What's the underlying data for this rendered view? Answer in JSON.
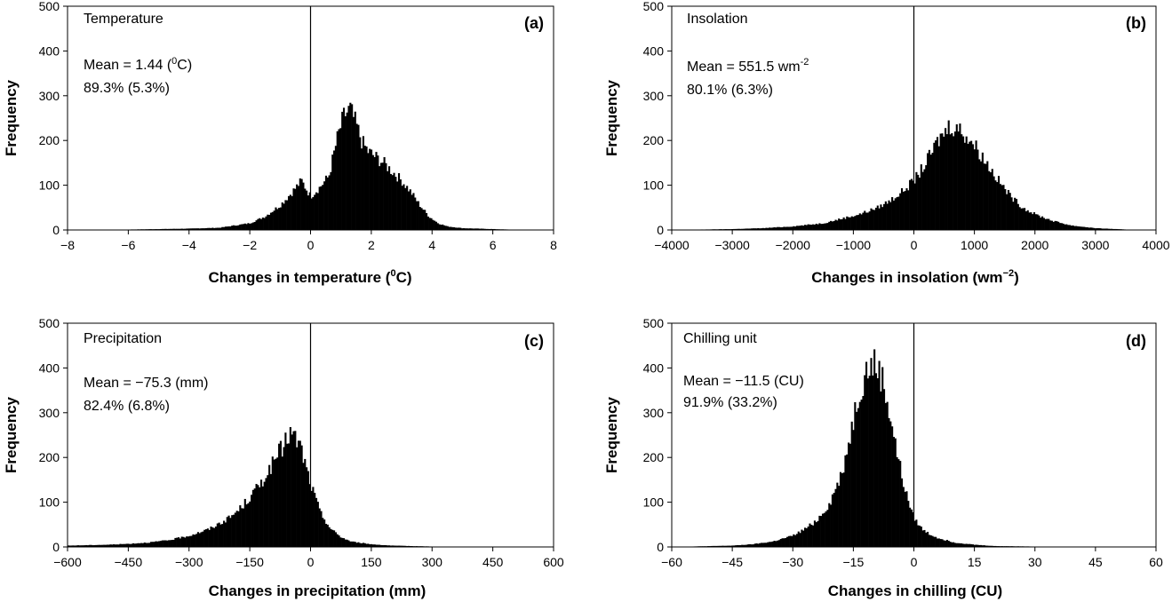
{
  "chart_data": [
    {
      "type": "bar",
      "panel_label": "(a)",
      "name": "Temperature",
      "stats": [
        "Mean = 1.44 (",
        "0",
        "C)",
        "89.3% (5.3%)"
      ],
      "xlabel": [
        "Changes in temperature (",
        "0",
        "C)"
      ],
      "ylabel": "Frequency",
      "xlim": [
        -8,
        8
      ],
      "ylim": [
        0,
        500
      ],
      "xticks": [
        -8,
        -6,
        -4,
        -2,
        0,
        2,
        4,
        6,
        8
      ],
      "xtick_labels": [
        "−8",
        "−6",
        "−4",
        "−2",
        "0",
        "2",
        "4",
        "6",
        "8"
      ],
      "yticks": [
        0,
        100,
        200,
        300,
        400,
        500
      ],
      "zero_line": 0,
      "x": [
        -7.5,
        -6.0,
        -5.0,
        -4.0,
        -3.0,
        -2.0,
        -1.5,
        -1.0,
        -0.6,
        -0.3,
        0.0,
        0.3,
        0.6,
        0.9,
        1.1,
        1.3,
        1.5,
        1.7,
        1.9,
        2.1,
        2.4,
        2.7,
        3.0,
        3.3,
        3.6,
        3.9,
        4.2,
        4.5,
        5.0,
        5.5,
        6.0,
        6.5,
        7.0
      ],
      "values": [
        0,
        1,
        2,
        3,
        5,
        15,
        30,
        55,
        85,
        110,
        75,
        95,
        120,
        210,
        255,
        270,
        235,
        195,
        175,
        165,
        150,
        130,
        110,
        85,
        55,
        30,
        15,
        8,
        4,
        3,
        2,
        1,
        0
      ]
    },
    {
      "type": "bar",
      "panel_label": "(b)",
      "name": "Insolation",
      "stats": [
        "Mean = 551.5 wm",
        "-2",
        "",
        "80.1% (6.3%)"
      ],
      "xlabel": [
        "Changes in insolation (wm",
        "−2",
        ")"
      ],
      "ylabel": "Frequency",
      "xlim": [
        -4000,
        4000
      ],
      "ylim": [
        0,
        500
      ],
      "xticks": [
        -4000,
        -3000,
        -2000,
        -1000,
        0,
        1000,
        2000,
        3000,
        4000
      ],
      "xtick_labels": [
        "−4000",
        "−3000",
        "−2000",
        "−1000",
        "0",
        "1000",
        "2000",
        "3000",
        "4000"
      ],
      "yticks": [
        0,
        100,
        200,
        300,
        400,
        500
      ],
      "zero_line": 0,
      "x": [
        -4000,
        -3500,
        -3000,
        -2500,
        -2000,
        -1500,
        -1200,
        -900,
        -600,
        -400,
        -200,
        0,
        200,
        400,
        600,
        800,
        1000,
        1200,
        1400,
        1600,
        1800,
        2000,
        2300,
        2600,
        3000,
        3500,
        4000
      ],
      "values": [
        0,
        1,
        2,
        4,
        8,
        15,
        25,
        35,
        50,
        65,
        85,
        110,
        150,
        200,
        235,
        220,
        190,
        150,
        110,
        75,
        50,
        35,
        20,
        10,
        4,
        1,
        0
      ]
    },
    {
      "type": "bar",
      "panel_label": "(c)",
      "name": "Precipitation",
      "stats": [
        "Mean = −75.3 (mm)",
        "",
        "",
        "82.4% (6.8%)"
      ],
      "xlabel": [
        "Changes in precipitation  (mm)",
        "",
        ""
      ],
      "ylabel": "Frequency",
      "xlim": [
        -600,
        600
      ],
      "ylim": [
        0,
        500
      ],
      "xticks": [
        -600,
        -450,
        -300,
        -150,
        0,
        150,
        300,
        450,
        600
      ],
      "xtick_labels": [
        "−600",
        "−450",
        "−300",
        "−150",
        "0",
        "150",
        "300",
        "450",
        "600"
      ],
      "yticks": [
        0,
        100,
        200,
        300,
        400,
        500
      ],
      "zero_line": 0,
      "x": [
        -600,
        -550,
        -500,
        -450,
        -400,
        -350,
        -300,
        -250,
        -200,
        -175,
        -150,
        -125,
        -100,
        -75,
        -50,
        -25,
        0,
        25,
        50,
        75,
        100,
        150,
        200,
        250,
        300,
        400,
        500,
        600
      ],
      "values": [
        3,
        4,
        5,
        7,
        10,
        15,
        25,
        40,
        65,
        85,
        110,
        140,
        175,
        215,
        255,
        225,
        140,
        75,
        40,
        22,
        12,
        6,
        3,
        2,
        1,
        0,
        0,
        0
      ]
    },
    {
      "type": "bar",
      "panel_label": "(d)",
      "name": "Chilling unit",
      "stats": [
        "Mean =  −11.5 (CU)",
        "",
        "",
        "91.9% (33.2%)"
      ],
      "xlabel": [
        "Changes in chilling  (CU)",
        "",
        ""
      ],
      "ylabel": "Frequency",
      "xlim": [
        -60,
        60
      ],
      "ylim": [
        0,
        500
      ],
      "xticks": [
        -60,
        -45,
        -30,
        -15,
        0,
        15,
        30,
        45,
        60
      ],
      "xtick_labels": [
        "−60",
        "−45",
        "−30",
        "−15",
        "0",
        "15",
        "30",
        "45",
        "60"
      ],
      "yticks": [
        0,
        100,
        200,
        300,
        400,
        500
      ],
      "zero_line": 0,
      "x": [
        -60,
        -50,
        -45,
        -40,
        -35,
        -30,
        -27,
        -24,
        -21,
        -18,
        -16,
        -14,
        -12,
        -10,
        -8,
        -6,
        -4,
        -2,
        0,
        2,
        4,
        6,
        8,
        10,
        15,
        20,
        30,
        40,
        60
      ],
      "values": [
        0,
        2,
        3,
        6,
        12,
        25,
        40,
        60,
        95,
        160,
        240,
        330,
        390,
        410,
        380,
        300,
        200,
        120,
        65,
        40,
        28,
        20,
        15,
        10,
        5,
        2,
        1,
        0,
        0
      ]
    }
  ]
}
